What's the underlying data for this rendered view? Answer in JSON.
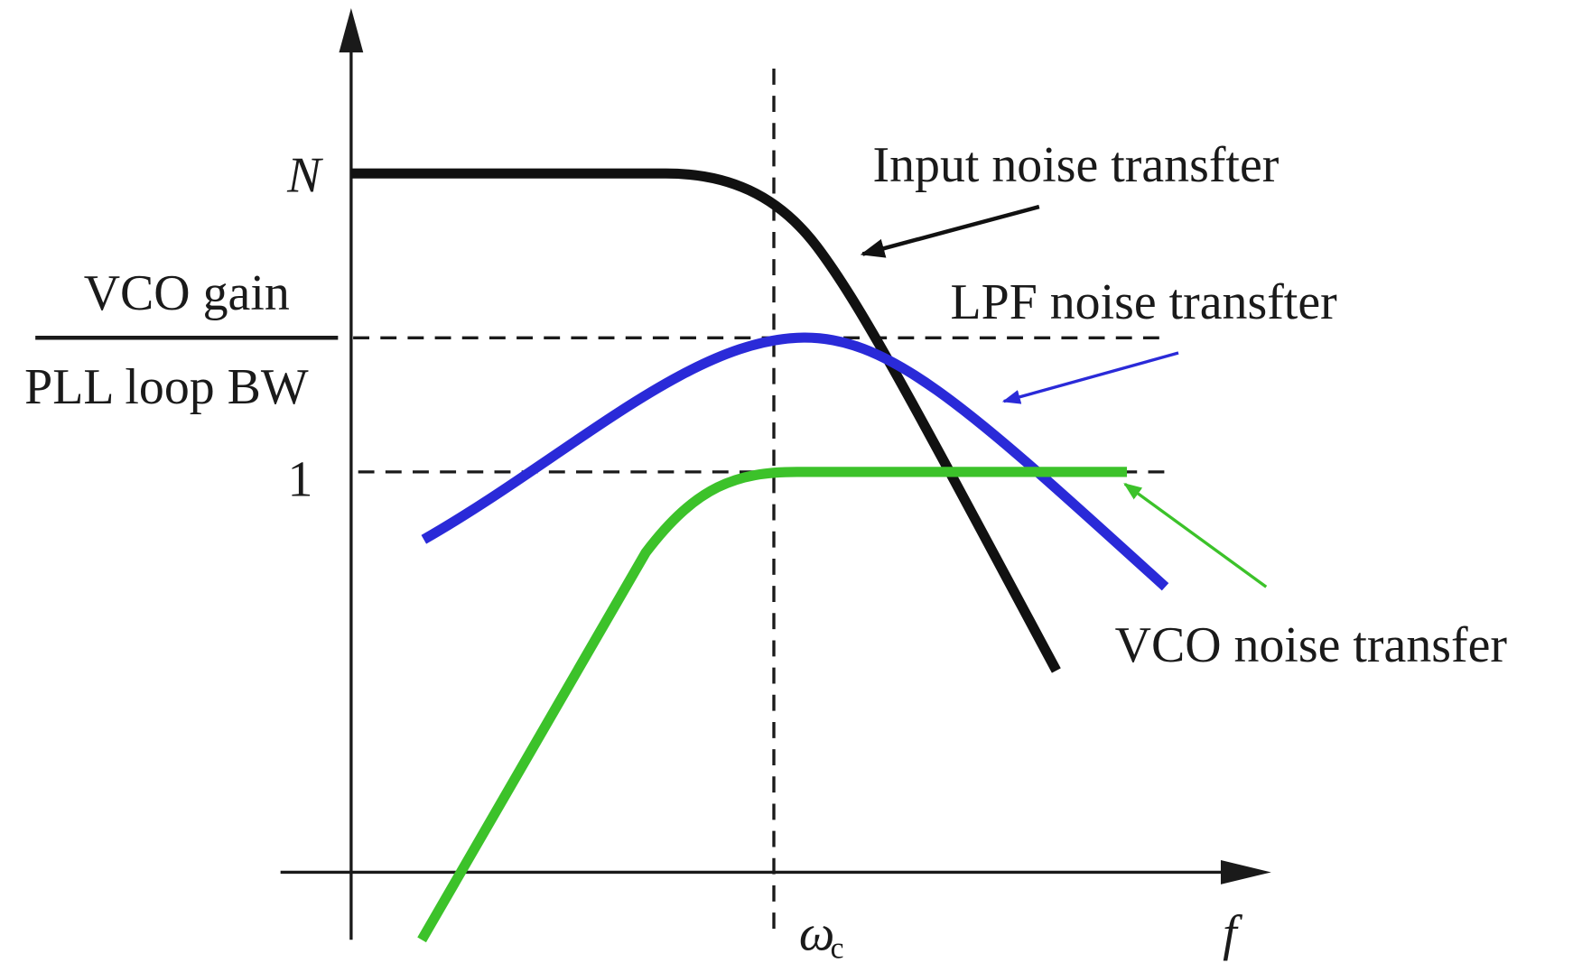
{
  "y_labels": {
    "n": "N",
    "fraction_numerator": "VCO gain",
    "fraction_denominator": "PLL loop BW",
    "one": "1"
  },
  "x_labels": {
    "omega": "ω",
    "omega_subscript": "c",
    "f": "f"
  },
  "curves": [
    {
      "label": "Input noise transfter"
    },
    {
      "label": "LPF noise transfter"
    },
    {
      "label": "VCO noise transfer"
    }
  ]
}
